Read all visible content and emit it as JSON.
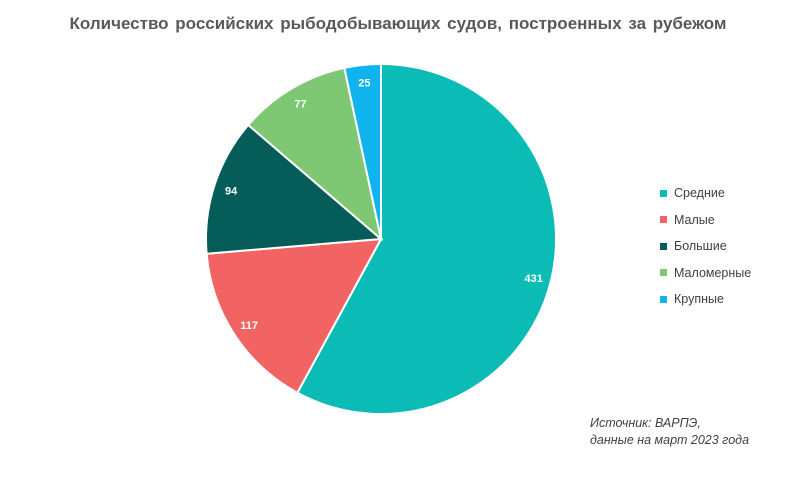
{
  "chart_data": {
    "type": "pie",
    "title": "Количество российских рыбодобывающих судов, построенных за рубежом",
    "slices": [
      {
        "label": "Средние",
        "value": 431,
        "color": "#0bbcb6"
      },
      {
        "label": "Малые",
        "value": 117,
        "color": "#f26463"
      },
      {
        "label": "Большие",
        "value": 94,
        "color": "#065c58"
      },
      {
        "label": "Маломерные",
        "value": 77,
        "color": "#7ec874"
      },
      {
        "label": "Крупные",
        "value": 25,
        "color": "#0fb3ee"
      }
    ],
    "legend_position": "right",
    "data_labels": true
  },
  "source": {
    "line1": "Источник: ВАРПЭ,",
    "line2": "данные на март 2023 года"
  }
}
